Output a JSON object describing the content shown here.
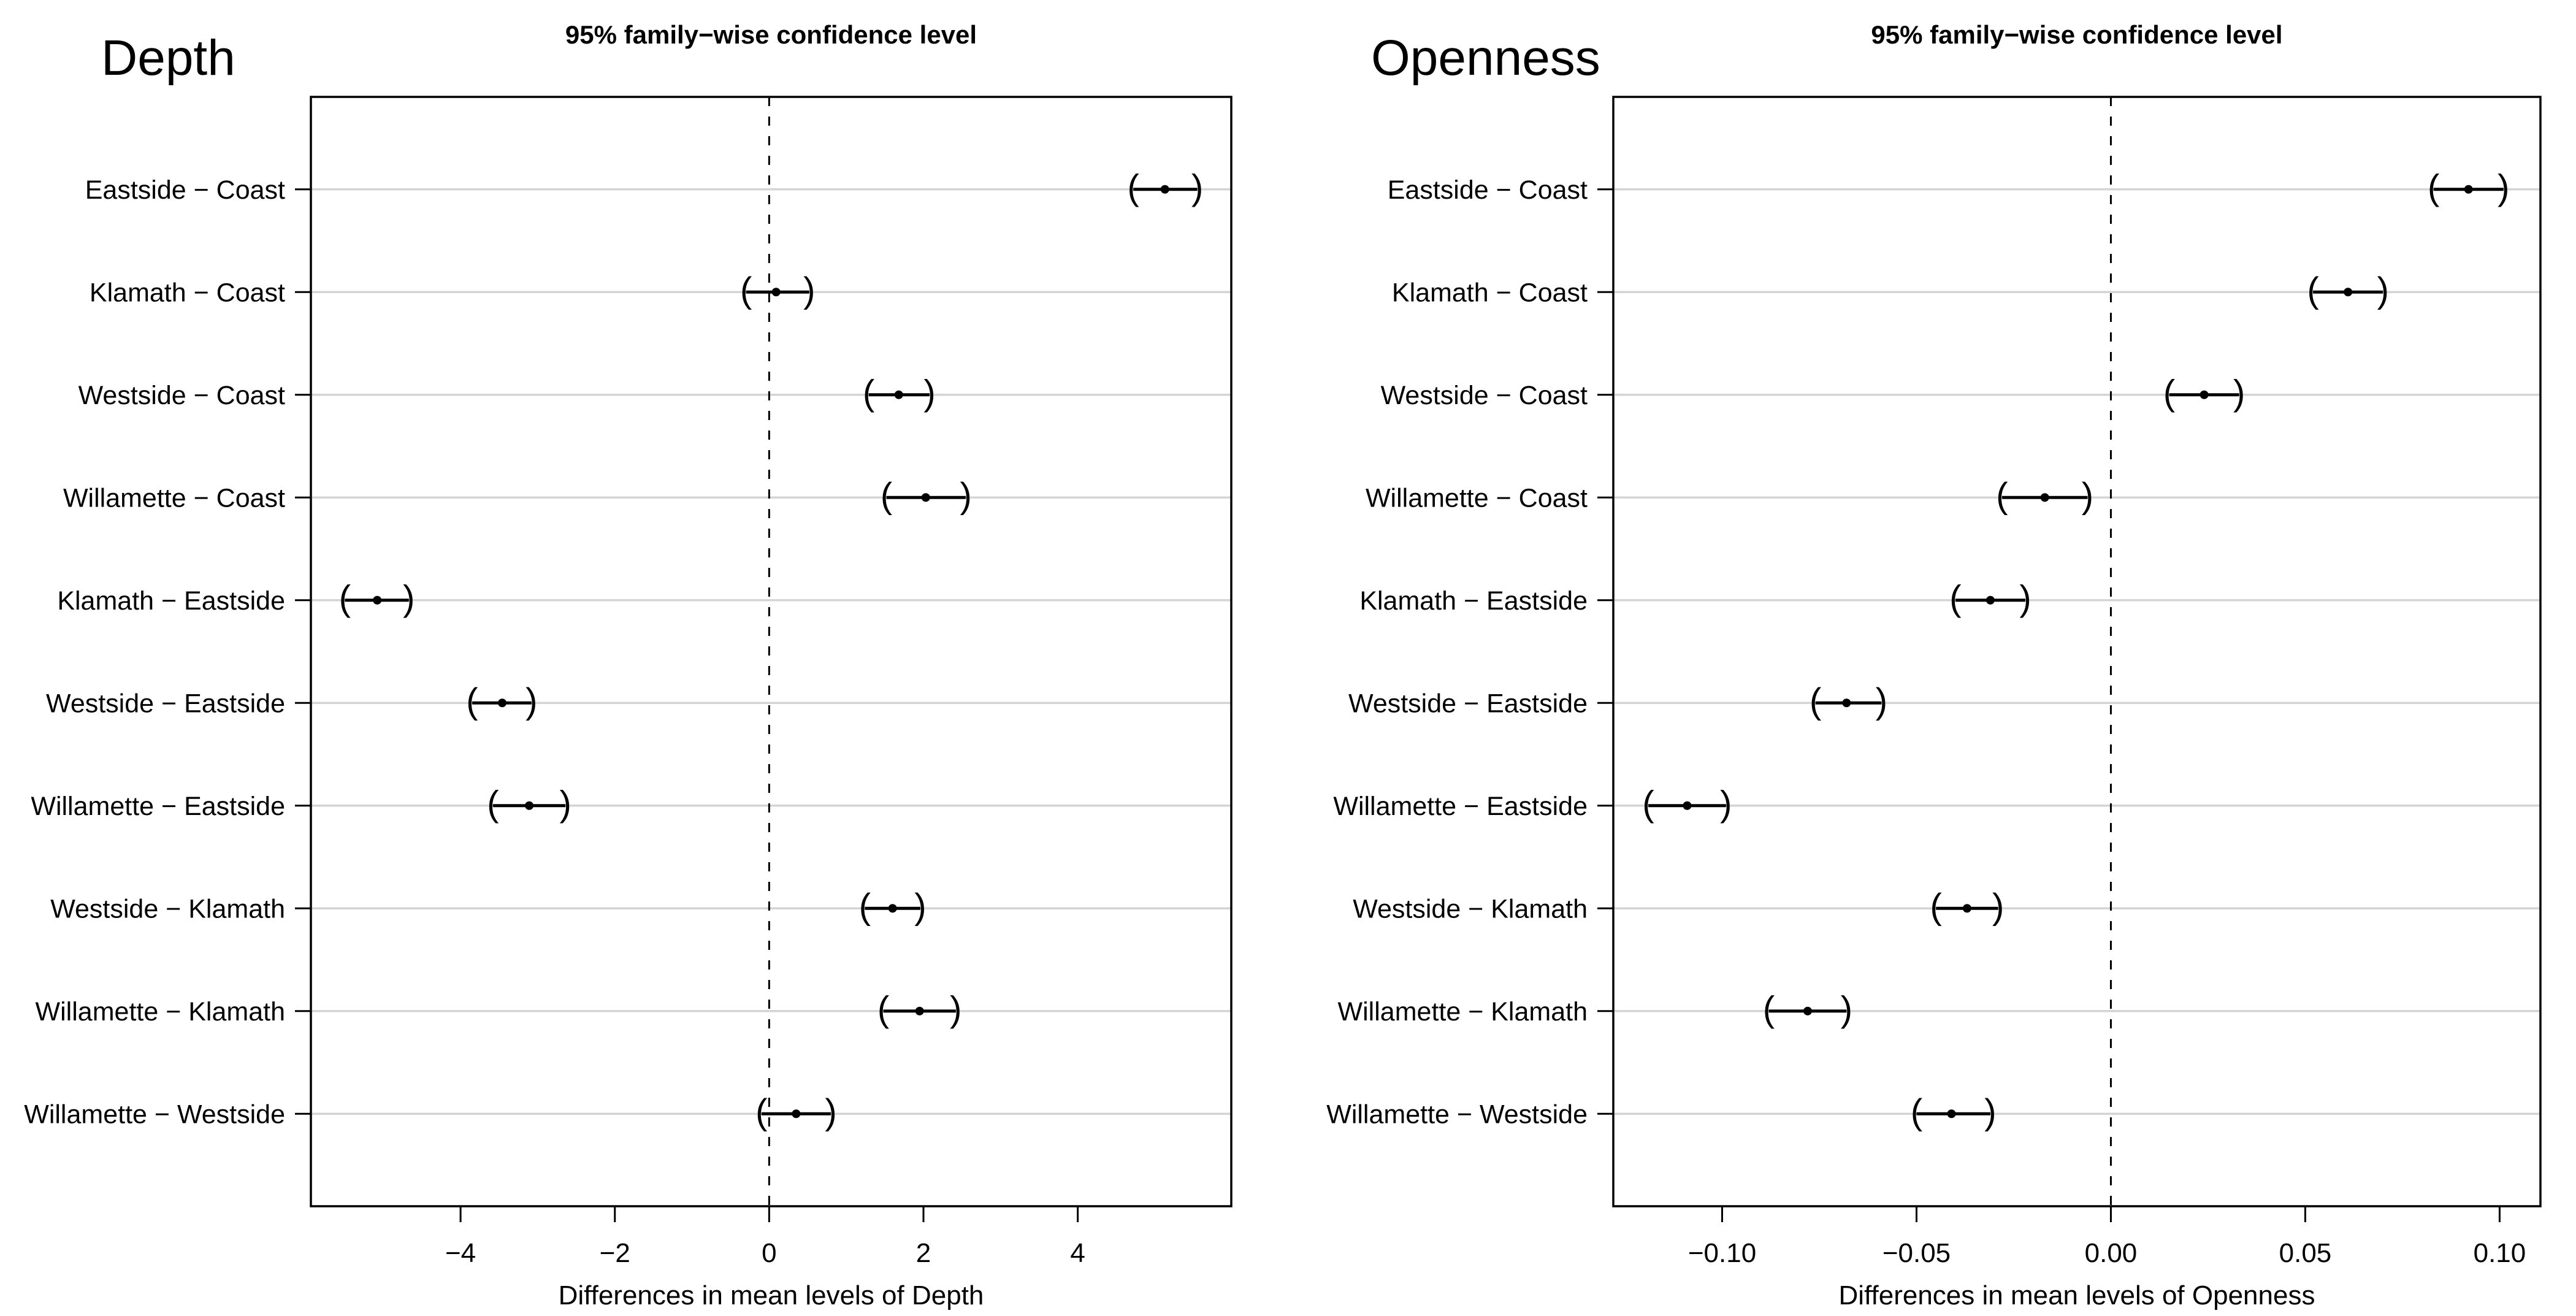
{
  "figure": {
    "background": "#ffffff",
    "description": "Two Tukey HSD 95% family-wise confidence interval plots"
  },
  "styles": {
    "text_color": "#000000",
    "box_color": "#000000",
    "grid_line_color": "#d4d4d4",
    "interval_color": "#000000",
    "point_color": "#000000",
    "zero_line_color": "#000000",
    "zero_line_style": "dashed"
  },
  "chart_data": [
    {
      "type": "tukey_hsd_interval",
      "panel_label": "Depth",
      "title": "95% family−wise confidence level",
      "xlabel": "Differences in mean levels of Depth",
      "xlim": [
        -5.94,
        5.99
      ],
      "xticks": [
        -4,
        -2,
        0,
        2,
        4
      ],
      "xtick_labels": [
        "−4",
        "−2",
        "0",
        "2",
        "4"
      ],
      "zero_reference_line": 0,
      "grid": "light horizontal line per comparison",
      "legend_position": "none",
      "intervals": [
        {
          "label": "Eastside − Coast",
          "lwr": 4.72,
          "diff": 5.13,
          "upr": 5.55
        },
        {
          "label": "Klamath − Coast",
          "lwr": -0.3,
          "diff": 0.09,
          "upr": 0.52
        },
        {
          "label": "Westside − Coast",
          "lwr": 1.29,
          "diff": 1.68,
          "upr": 2.08
        },
        {
          "label": "Willamette − Coast",
          "lwr": 1.52,
          "diff": 2.03,
          "upr": 2.55
        },
        {
          "label": "Klamath − Eastside",
          "lwr": -5.5,
          "diff": -5.08,
          "upr": -4.67
        },
        {
          "label": "Westside − Eastside",
          "lwr": -3.85,
          "diff": -3.46,
          "upr": -3.08
        },
        {
          "label": "Willamette − Eastside",
          "lwr": -3.58,
          "diff": -3.11,
          "upr": -2.64
        },
        {
          "label": "Westside − Klamath",
          "lwr": 1.24,
          "diff": 1.6,
          "upr": 1.96
        },
        {
          "label": "Willamette − Klamath",
          "lwr": 1.48,
          "diff": 1.95,
          "upr": 2.42
        },
        {
          "label": "Willamette − Westside",
          "lwr": -0.1,
          "diff": 0.35,
          "upr": 0.8
        }
      ]
    },
    {
      "type": "tukey_hsd_interval",
      "panel_label": "Openness",
      "title": "95% family−wise confidence level",
      "xlabel": "Differences in mean levels of Openness",
      "xlim": [
        -0.128,
        0.1105
      ],
      "xticks": [
        -0.1,
        -0.05,
        0.0,
        0.05,
        0.1
      ],
      "xtick_labels": [
        "−0.10",
        "−0.05",
        "0.00",
        "0.05",
        "0.10"
      ],
      "zero_reference_line": 0,
      "grid": "light horizontal line per comparison",
      "legend_position": "none",
      "intervals": [
        {
          "label": "Eastside − Coast",
          "lwr": 0.083,
          "diff": 0.092,
          "upr": 0.101
        },
        {
          "label": "Klamath − Coast",
          "lwr": 0.052,
          "diff": 0.061,
          "upr": 0.07
        },
        {
          "label": "Westside − Coast",
          "lwr": 0.015,
          "diff": 0.024,
          "upr": 0.033
        },
        {
          "label": "Willamette − Coast",
          "lwr": -0.028,
          "diff": -0.017,
          "upr": -0.006
        },
        {
          "label": "Klamath − Eastside",
          "lwr": -0.04,
          "diff": -0.031,
          "upr": -0.022
        },
        {
          "label": "Westside − Eastside",
          "lwr": -0.076,
          "diff": -0.068,
          "upr": -0.059
        },
        {
          "label": "Willamette − Eastside",
          "lwr": -0.119,
          "diff": -0.109,
          "upr": -0.099
        },
        {
          "label": "Westside − Klamath",
          "lwr": -0.045,
          "diff": -0.037,
          "upr": -0.029
        },
        {
          "label": "Willamette − Klamath",
          "lwr": -0.088,
          "diff": -0.078,
          "upr": -0.068
        },
        {
          "label": "Willamette − Westside",
          "lwr": -0.05,
          "diff": -0.041,
          "upr": -0.031
        }
      ]
    }
  ]
}
